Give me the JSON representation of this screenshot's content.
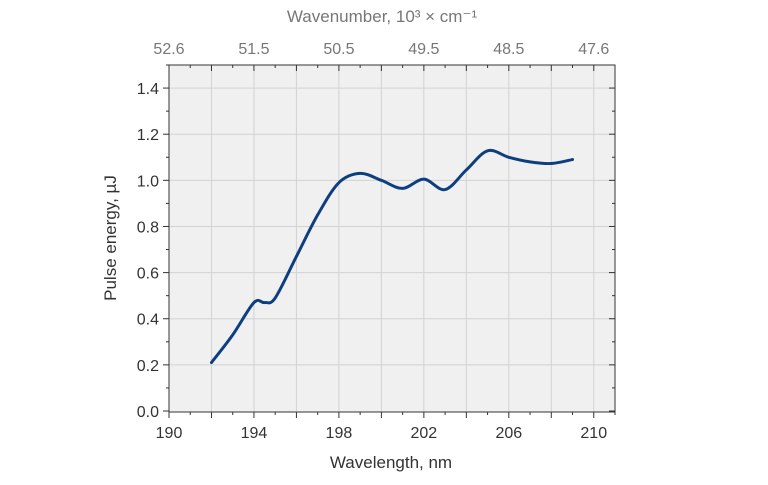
{
  "chart_data": {
    "type": "line",
    "xlabel": "Wavelength, nm",
    "ylabel": "Pulse energy, µJ",
    "xlim": [
      190,
      211
    ],
    "ylim": [
      0,
      1.5
    ],
    "x_ticks": [
      190,
      194,
      198,
      202,
      206,
      210
    ],
    "x_tick_labels": [
      "190",
      "194",
      "198",
      "202",
      "206",
      "210"
    ],
    "y_ticks": [
      0,
      0.2,
      0.4,
      0.6,
      0.8,
      1.0,
      1.2,
      1.4
    ],
    "y_tick_labels": [
      "0.0",
      "0.2",
      "0.4",
      "0.6",
      "0.8",
      "1.0",
      "1.2",
      "1.4"
    ],
    "grid": true,
    "top_axis": {
      "label": "Wavenumber, 10³ × cm⁻¹",
      "ticks": [
        {
          "wavelength": 190,
          "label": "52.6"
        },
        {
          "wavelength": 194,
          "label": "51.5"
        },
        {
          "wavelength": 198,
          "label": "50.5"
        },
        {
          "wavelength": 202,
          "label": "49.5"
        },
        {
          "wavelength": 206,
          "label": "48.5"
        },
        {
          "wavelength": 210,
          "label": "47.6"
        }
      ]
    },
    "series": [
      {
        "color": "#0d3f7f",
        "x": [
          192,
          193,
          194,
          194.5,
          195,
          196,
          197,
          198,
          199,
          200,
          201,
          202,
          203,
          204,
          205,
          206,
          207,
          208,
          209
        ],
        "y": [
          0.21,
          0.33,
          0.47,
          0.47,
          0.49,
          0.67,
          0.85,
          0.99,
          1.03,
          1.0,
          0.965,
          1.005,
          0.96,
          1.045,
          1.128,
          1.1,
          1.08,
          1.073,
          1.09
        ]
      }
    ],
    "colors": {
      "plot_bg": "#f0f0f0",
      "grid": "#d2d2d2",
      "axis": "#333333",
      "top_axis_text": "#777777"
    }
  }
}
